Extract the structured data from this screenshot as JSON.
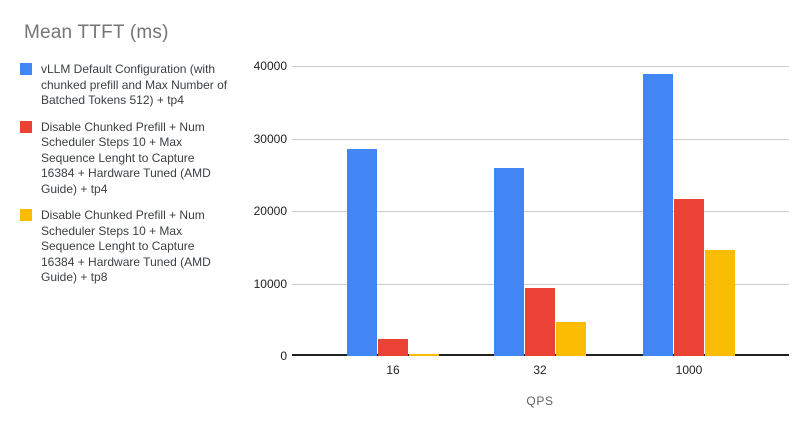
{
  "chart_data": {
    "type": "bar",
    "title": "Mean TTFT (ms)",
    "xlabel": "QPS",
    "ylabel": "",
    "categories": [
      "16",
      "32",
      "1000"
    ],
    "series": [
      {
        "name": "vLLM Default Configuration (with chunked prefill and Max Number of Batched Tokens 512) + tp4",
        "color": "#4285F4",
        "values": [
          28500,
          26000,
          38900
        ]
      },
      {
        "name": "Disable Chunked Prefill + Num Scheduler Steps 10 + Max Sequence Lenght to Capture 16384 + Hardware Tuned (AMD Guide) + tp4",
        "color": "#EA4335",
        "values": [
          2300,
          9400,
          21600
        ]
      },
      {
        "name": "Disable Chunked Prefill + Num Scheduler Steps 10 + Max Sequence Lenght to Capture 16384 + Hardware Tuned (AMD Guide) + tp8",
        "color": "#FBBC04",
        "values": [
          300,
          4700,
          14600
        ]
      }
    ],
    "ylim": [
      0,
      40000
    ],
    "yticks": [
      0,
      10000,
      20000,
      30000,
      40000
    ],
    "grid": true,
    "legend_position": "left"
  },
  "colors": {
    "background": "#ffffff",
    "title_text": "#757575",
    "legend_text": "#3c4043",
    "tick_text": "#1f1f1f",
    "axis_title_text": "#616161",
    "gridline": "#cccccc",
    "axis_line": "#212121"
  }
}
